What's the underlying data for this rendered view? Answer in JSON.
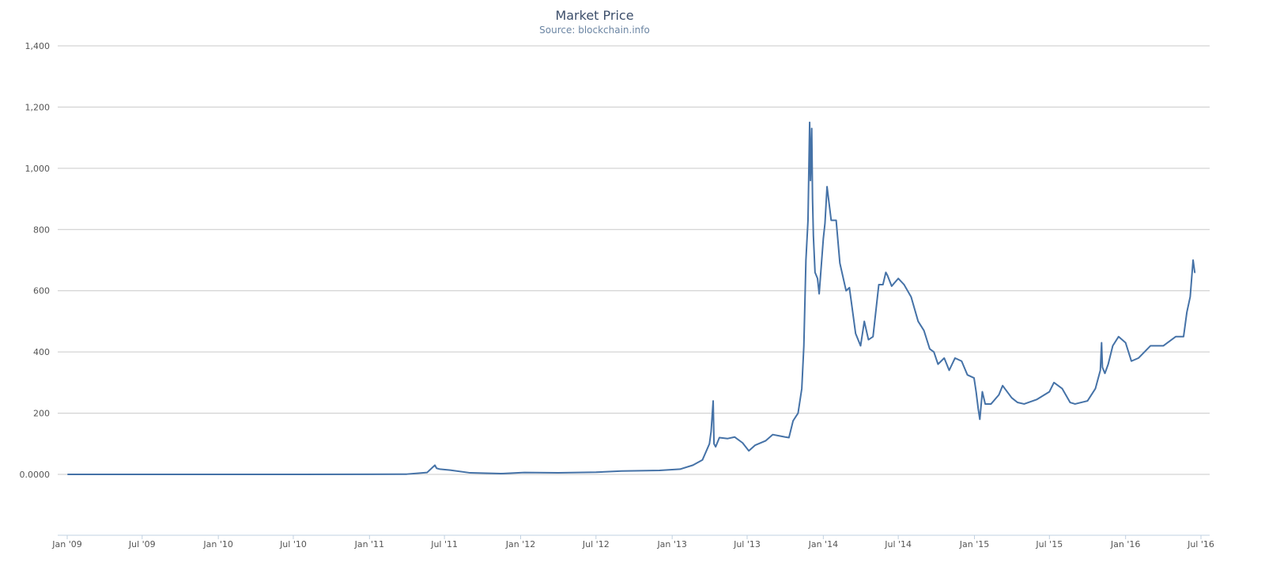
{
  "chart_data": {
    "type": "line",
    "title": "Market Price",
    "subtitle": "Source: blockchain.info",
    "xlabel": "",
    "ylabel": "",
    "ylim": [
      -200,
      1400
    ],
    "y_ticks": [
      {
        "value": 0,
        "label": "0.0000"
      },
      {
        "value": 200,
        "label": "200"
      },
      {
        "value": 400,
        "label": "400"
      },
      {
        "value": 600,
        "label": "600"
      },
      {
        "value": 800,
        "label": "800"
      },
      {
        "value": 1000,
        "label": "1,000"
      },
      {
        "value": 1200,
        "label": "1,200"
      },
      {
        "value": 1400,
        "label": "1,400"
      }
    ],
    "x_ticks": [
      {
        "date": "2009-01-01",
        "label": "Jan '09"
      },
      {
        "date": "2009-07-01",
        "label": "Jul '09"
      },
      {
        "date": "2010-01-01",
        "label": "Jan '10"
      },
      {
        "date": "2010-07-01",
        "label": "Jul '10"
      },
      {
        "date": "2011-01-01",
        "label": "Jan '11"
      },
      {
        "date": "2011-07-01",
        "label": "Jul '11"
      },
      {
        "date": "2012-01-01",
        "label": "Jan '12"
      },
      {
        "date": "2012-07-01",
        "label": "Jul '12"
      },
      {
        "date": "2013-01-01",
        "label": "Jan '13"
      },
      {
        "date": "2013-07-01",
        "label": "Jul '13"
      },
      {
        "date": "2014-01-01",
        "label": "Jan '14"
      },
      {
        "date": "2014-07-01",
        "label": "Jul '14"
      },
      {
        "date": "2015-01-01",
        "label": "Jan '15"
      },
      {
        "date": "2015-07-01",
        "label": "Jul '15"
      },
      {
        "date": "2016-01-01",
        "label": "Jan '16"
      },
      {
        "date": "2016-07-01",
        "label": "Jul '16"
      }
    ],
    "grid": true,
    "legend": "none",
    "series": [
      {
        "color": "#4572a7",
        "x": [
          "2009-01-03",
          "2010-07-15",
          "2011-01-01",
          "2011-04-01",
          "2011-05-20",
          "2011-06-08",
          "2011-06-12",
          "2011-06-20",
          "2011-07-15",
          "2011-09-01",
          "2011-11-15",
          "2012-01-10",
          "2012-04-01",
          "2012-07-01",
          "2012-09-01",
          "2012-12-01",
          "2013-01-20",
          "2013-02-20",
          "2013-03-15",
          "2013-04-01",
          "2013-04-05",
          "2013-04-10",
          "2013-04-12",
          "2013-04-16",
          "2013-04-25",
          "2013-05-15",
          "2013-06-01",
          "2013-06-20",
          "2013-07-05",
          "2013-07-20",
          "2013-08-15",
          "2013-09-01",
          "2013-09-20",
          "2013-10-01",
          "2013-10-10",
          "2013-10-20",
          "2013-11-01",
          "2013-11-10",
          "2013-11-15",
          "2013-11-20",
          "2013-11-25",
          "2013-11-29",
          "2013-12-01",
          "2013-12-04",
          "2013-12-06",
          "2013-12-08",
          "2013-12-12",
          "2013-12-18",
          "2013-12-22",
          "2014-01-01",
          "2014-01-05",
          "2014-01-10",
          "2014-01-20",
          "2014-02-01",
          "2014-02-10",
          "2014-02-25",
          "2014-03-05",
          "2014-03-20",
          "2014-04-01",
          "2014-04-10",
          "2014-04-20",
          "2014-05-01",
          "2014-05-15",
          "2014-05-25",
          "2014-06-01",
          "2014-06-05",
          "2014-06-15",
          "2014-07-01",
          "2014-07-15",
          "2014-08-01",
          "2014-08-18",
          "2014-09-01",
          "2014-09-15",
          "2014-09-25",
          "2014-10-05",
          "2014-10-20",
          "2014-11-01",
          "2014-11-15",
          "2014-12-01",
          "2014-12-15",
          "2014-12-31",
          "2015-01-05",
          "2015-01-10",
          "2015-01-14",
          "2015-01-20",
          "2015-01-27",
          "2015-02-10",
          "2015-03-01",
          "2015-03-10",
          "2015-04-01",
          "2015-04-15",
          "2015-05-01",
          "2015-06-01",
          "2015-07-01",
          "2015-07-12",
          "2015-08-01",
          "2015-08-20",
          "2015-09-01",
          "2015-10-01",
          "2015-10-20",
          "2015-11-01",
          "2015-11-04",
          "2015-11-06",
          "2015-11-12",
          "2015-11-20",
          "2015-12-01",
          "2015-12-15",
          "2016-01-01",
          "2016-01-15",
          "2016-02-01",
          "2016-03-01",
          "2016-04-01",
          "2016-05-01",
          "2016-05-20",
          "2016-05-28",
          "2016-06-05",
          "2016-06-12",
          "2016-06-16"
        ],
        "values": [
          0,
          0.07,
          0.3,
          0.8,
          6,
          30,
          20,
          17,
          14,
          5,
          2.5,
          6,
          5,
          7,
          11,
          13,
          17,
          30,
          47,
          100,
          140,
          240,
          100,
          90,
          120,
          117,
          122,
          103,
          77,
          95,
          110,
          130,
          125,
          122,
          120,
          175,
          200,
          280,
          420,
          700,
          830,
          1150,
          960,
          1130,
          900,
          780,
          660,
          640,
          590,
          770,
          820,
          940,
          830,
          830,
          690,
          600,
          610,
          460,
          420,
          500,
          440,
          450,
          620,
          620,
          660,
          650,
          615,
          640,
          620,
          580,
          500,
          470,
          410,
          400,
          360,
          380,
          340,
          380,
          370,
          325,
          315,
          270,
          215,
          180,
          270,
          230,
          230,
          260,
          290,
          250,
          235,
          230,
          245,
          270,
          300,
          280,
          235,
          230,
          240,
          280,
          340,
          430,
          350,
          330,
          360,
          420,
          450,
          430,
          370,
          380,
          420,
          420,
          450,
          450,
          530,
          580,
          700,
          660
        ]
      }
    ]
  }
}
